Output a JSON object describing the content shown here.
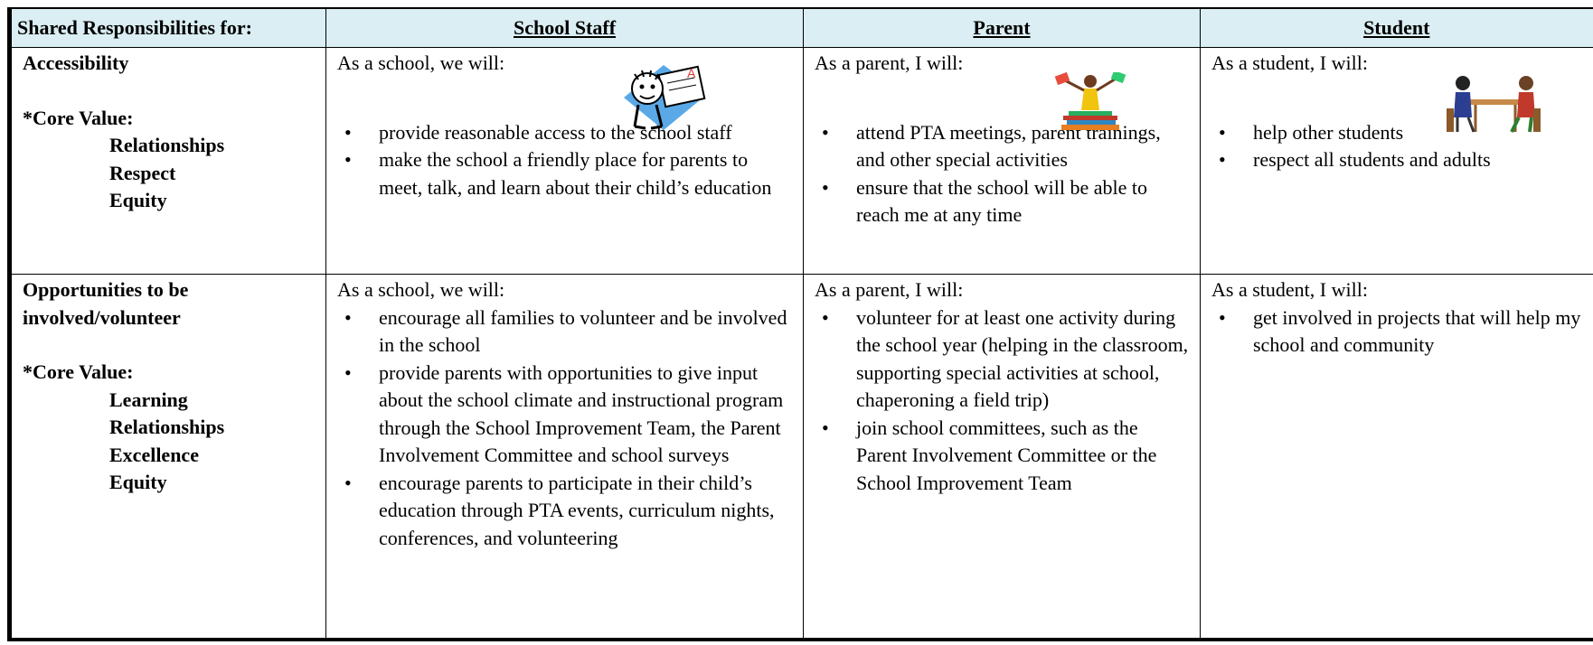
{
  "header": [
    "Shared Responsibilities for:",
    "School Staff",
    "Parent",
    "Student"
  ],
  "rows": [
    {
      "label": "Accessibility",
      "core_value_label": "*Core Value:",
      "core_values": [
        "Relationships",
        "Respect",
        "Equity"
      ],
      "cells": [
        {
          "intro": "As a school,  we will:",
          "items": [
            "provide reasonable access to the school staff",
            "make the school a friendly place for parents to meet, talk, and learn about their child’s education"
          ]
        },
        {
          "intro": "As a parent,  I will:",
          "items": [
            "attend PTA meetings, parent trainings, and other special activities",
            "ensure that the school will be able to reach me at any time"
          ]
        },
        {
          "intro": "As a student, I will:",
          "items": [
            "help other students",
            "respect all students and adults"
          ]
        }
      ]
    },
    {
      "label": "Opportunities to be involved/volunteer",
      "core_value_label": "*Core Value:",
      "core_values": [
        "Learning",
        "Relationships",
        "Excellence",
        "Equity"
      ],
      "cells": [
        {
          "intro": "As a school, we will:",
          "items": [
            "encourage all families to volunteer and be involved in the school",
            "provide parents with opportunities to give input about the school climate and instructional program through the School Improvement Team, the Parent Involvement Committee and school surveys",
            "encourage parents to participate in their child’s education through PTA events, curriculum nights, conferences, and volunteering"
          ]
        },
        {
          "intro": "As a parent, I will:",
          "items": [
            "volunteer for at least one activity during the school year (helping in the classroom, supporting special activities at school, chaperoning a field trip)",
            "join school committees, such as the Parent Involvement Committee or the School Improvement Team"
          ]
        },
        {
          "intro": "As a student, I will:",
          "items": [
            "get involved in projects that will help my school and community"
          ]
        }
      ]
    }
  ]
}
